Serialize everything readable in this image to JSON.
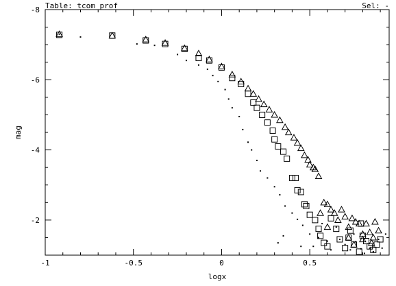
{
  "header": {
    "table_label": "Table: tcom_prof",
    "sel_label": "Sel: -"
  },
  "colors": {
    "background": "#ffffff",
    "ink": "#000000"
  },
  "chart_data": {
    "type": "scatter",
    "title": "",
    "xlabel": "logx",
    "ylabel": "mag",
    "xlim": [
      -1.0,
      0.95
    ],
    "ylim": [
      -8.0,
      -1.0
    ],
    "y_axis_inverted": true,
    "grid": false,
    "legend": "none",
    "xticks": [
      {
        "value": -1,
        "label": "-1"
      },
      {
        "value": -0.5,
        "label": "-0.5"
      },
      {
        "value": 0,
        "label": "0"
      },
      {
        "value": 0.5,
        "label": "0.5"
      }
    ],
    "yticks": [
      {
        "value": -8,
        "label": "-8"
      },
      {
        "value": -6,
        "label": "-6"
      },
      {
        "value": -4,
        "label": "-4"
      },
      {
        "value": -2,
        "label": "-2"
      }
    ],
    "series": [
      {
        "marker": "triangle",
        "points": [
          [
            -0.92,
            -7.3
          ],
          [
            -0.62,
            -7.26
          ],
          [
            -0.43,
            -7.15
          ],
          [
            -0.32,
            -7.05
          ],
          [
            -0.21,
            -6.9
          ],
          [
            -0.13,
            -6.75
          ],
          [
            -0.07,
            -6.58
          ],
          [
            0.0,
            -6.38
          ],
          [
            0.06,
            -6.15
          ],
          [
            0.11,
            -5.95
          ],
          [
            0.15,
            -5.75
          ],
          [
            0.18,
            -5.6
          ],
          [
            0.21,
            -5.45
          ],
          [
            0.24,
            -5.3
          ],
          [
            0.27,
            -5.15
          ],
          [
            0.3,
            -5.0
          ],
          [
            0.33,
            -4.85
          ],
          [
            0.36,
            -4.65
          ],
          [
            0.38,
            -4.5
          ],
          [
            0.41,
            -4.35
          ],
          [
            0.43,
            -4.2
          ],
          [
            0.45,
            -4.05
          ],
          [
            0.47,
            -3.85
          ],
          [
            0.49,
            -3.72
          ],
          [
            0.5,
            -3.58
          ],
          [
            0.52,
            -3.5
          ],
          [
            0.53,
            -3.45
          ],
          [
            0.55,
            -3.25
          ],
          [
            0.58,
            -2.5
          ],
          [
            0.6,
            -2.45
          ],
          [
            0.62,
            -2.3
          ],
          [
            0.64,
            -2.2
          ],
          [
            0.66,
            -2.0
          ],
          [
            0.68,
            -2.3
          ],
          [
            0.7,
            -2.1
          ],
          [
            0.72,
            -1.8
          ],
          [
            0.74,
            -2.05
          ],
          [
            0.76,
            -1.95
          ],
          [
            0.78,
            -1.9
          ],
          [
            0.8,
            -1.45
          ],
          [
            0.82,
            -1.9
          ],
          [
            0.84,
            -1.65
          ],
          [
            0.86,
            -1.5
          ],
          [
            0.87,
            -1.95
          ],
          [
            0.89,
            -1.7
          ],
          [
            0.56,
            -2.2
          ],
          [
            0.6,
            -1.8
          ],
          [
            0.72,
            -1.5
          ],
          [
            0.75,
            -1.3
          ],
          [
            0.8,
            -1.6
          ],
          [
            0.85,
            -1.35
          ]
        ]
      },
      {
        "marker": "square",
        "points": [
          [
            -0.92,
            -7.28
          ],
          [
            -0.62,
            -7.26
          ],
          [
            -0.43,
            -7.12
          ],
          [
            -0.32,
            -7.02
          ],
          [
            -0.21,
            -6.88
          ],
          [
            -0.13,
            -6.62
          ],
          [
            -0.07,
            -6.55
          ],
          [
            0.0,
            -6.35
          ],
          [
            0.06,
            -6.05
          ],
          [
            0.11,
            -5.88
          ],
          [
            0.15,
            -5.6
          ],
          [
            0.18,
            -5.35
          ],
          [
            0.2,
            -5.2
          ],
          [
            0.23,
            -5.0
          ],
          [
            0.26,
            -4.78
          ],
          [
            0.29,
            -4.55
          ],
          [
            0.3,
            -4.3
          ],
          [
            0.32,
            -4.1
          ],
          [
            0.35,
            -3.95
          ],
          [
            0.37,
            -3.75
          ],
          [
            0.4,
            -3.2
          ],
          [
            0.42,
            -3.2
          ],
          [
            0.43,
            -2.85
          ],
          [
            0.45,
            -2.8
          ],
          [
            0.47,
            -2.45
          ],
          [
            0.48,
            -2.4
          ],
          [
            0.5,
            -2.15
          ],
          [
            0.53,
            -2.0
          ],
          [
            0.55,
            -1.75
          ],
          [
            0.56,
            -1.55
          ],
          [
            0.58,
            -1.35
          ],
          [
            0.6,
            -1.25
          ],
          [
            0.62,
            -2.05
          ],
          [
            0.65,
            -1.75
          ],
          [
            0.67,
            -1.45
          ],
          [
            0.7,
            -1.2
          ],
          [
            0.72,
            -1.5
          ],
          [
            0.75,
            -1.3
          ],
          [
            0.78,
            -1.1
          ],
          [
            0.8,
            -1.55
          ],
          [
            0.82,
            -1.4
          ],
          [
            0.84,
            -1.25
          ],
          [
            0.86,
            -1.15
          ],
          [
            0.88,
            -1.3
          ],
          [
            0.9,
            -1.45
          ],
          [
            0.73,
            -1.7
          ],
          [
            0.79,
            -1.9
          ]
        ]
      },
      {
        "marker": "dot",
        "points": [
          [
            -0.92,
            -7.3
          ],
          [
            -0.8,
            -7.22
          ],
          [
            -0.48,
            -7.02
          ],
          [
            -0.38,
            -6.98
          ],
          [
            -0.25,
            -6.72
          ],
          [
            -0.2,
            -6.55
          ],
          [
            -0.13,
            -6.42
          ],
          [
            -0.08,
            -6.3
          ],
          [
            -0.05,
            -6.12
          ],
          [
            -0.02,
            -5.95
          ],
          [
            0.02,
            -5.72
          ],
          [
            0.04,
            -5.45
          ],
          [
            0.06,
            -5.2
          ],
          [
            0.1,
            -4.95
          ],
          [
            0.12,
            -4.58
          ],
          [
            0.15,
            -4.22
          ],
          [
            0.17,
            -4.0
          ],
          [
            0.2,
            -3.7
          ],
          [
            0.22,
            -3.4
          ],
          [
            0.26,
            -3.2
          ],
          [
            0.3,
            -2.95
          ],
          [
            0.33,
            -2.72
          ],
          [
            0.36,
            -2.4
          ],
          [
            0.4,
            -2.2
          ],
          [
            0.35,
            -1.55
          ],
          [
            0.32,
            -1.35
          ],
          [
            0.43,
            -2.02
          ],
          [
            0.46,
            -1.85
          ],
          [
            0.5,
            -1.6
          ],
          [
            0.52,
            -1.25
          ],
          [
            0.55,
            -1.5
          ],
          [
            0.6,
            -1.4
          ],
          [
            0.62,
            -1.15
          ],
          [
            0.67,
            -1.45
          ],
          [
            0.7,
            -1.3
          ],
          [
            0.73,
            -1.15
          ],
          [
            0.76,
            -1.38
          ],
          [
            0.79,
            -1.18
          ],
          [
            0.81,
            -1.05
          ],
          [
            0.84,
            -1.2
          ],
          [
            0.86,
            -1.1
          ],
          [
            0.89,
            -1.45
          ],
          [
            0.91,
            -1.2
          ],
          [
            0.93,
            -1.6
          ],
          [
            0.45,
            -1.25
          ],
          [
            0.57,
            -1.9
          ],
          [
            0.65,
            -1.8
          ],
          [
            0.75,
            -1.6
          ]
        ]
      }
    ]
  }
}
